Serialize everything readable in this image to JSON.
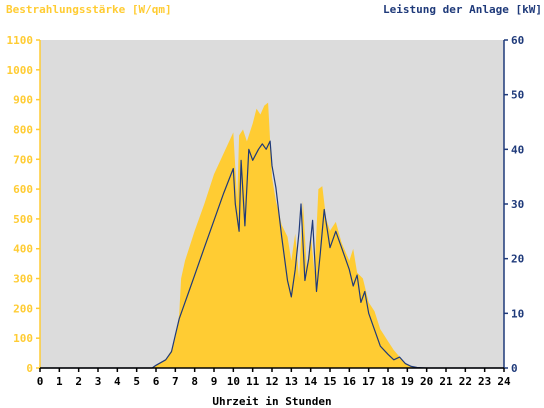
{
  "chart_data": {
    "type": "area",
    "title_left": "Bestrahlungsstärke [W/qm]",
    "title_right": "Leistung der Anlage [kW]",
    "xlabel": "Uhrzeit in Stunden",
    "x_ticks": [
      "0",
      "1",
      "2",
      "3",
      "4",
      "5",
      "6",
      "7",
      "8",
      "9",
      "10",
      "11",
      "12",
      "13",
      "14",
      "15",
      "16",
      "17",
      "18",
      "19",
      "20",
      "21",
      "22",
      "23",
      "24"
    ],
    "xlim": [
      0,
      24
    ],
    "y_left_ticks": [
      "0",
      "100",
      "200",
      "300",
      "400",
      "500",
      "600",
      "700",
      "800",
      "900",
      "1000",
      "1100"
    ],
    "ylim_left": [
      0,
      1100
    ],
    "y_right_ticks": [
      "0",
      "10",
      "20",
      "30",
      "40",
      "50",
      "60"
    ],
    "ylim_right": [
      0,
      60
    ],
    "grid": false,
    "colors": {
      "plot_bg": "#dcdcdc",
      "irradiance": "#ffcc33",
      "power": "#1f3a7a",
      "left_axis": "#ffcc33",
      "right_axis": "#1f3a7a",
      "x_axis": "#000000"
    },
    "series": [
      {
        "axis": "left",
        "style": "area",
        "x": [
          0,
          5.8,
          6.0,
          6.5,
          6.8,
          7.0,
          7.2,
          7.3,
          7.5,
          7.7,
          8.0,
          8.5,
          9.0,
          9.5,
          10.0,
          10.2,
          10.3,
          10.5,
          10.7,
          11.0,
          11.2,
          11.4,
          11.6,
          11.8,
          12.0,
          12.2,
          12.5,
          12.8,
          13.0,
          13.2,
          13.4,
          13.6,
          13.8,
          14.0,
          14.2,
          14.4,
          14.6,
          14.8,
          15.0,
          15.3,
          15.6,
          16.0,
          16.2,
          16.4,
          16.7,
          17.0,
          17.3,
          17.6,
          18.0,
          18.3,
          18.7,
          19.0,
          19.5,
          20.0,
          24
        ],
        "y": [
          0,
          0,
          10,
          30,
          60,
          100,
          180,
          300,
          360,
          400,
          460,
          550,
          650,
          720,
          790,
          560,
          780,
          800,
          760,
          820,
          870,
          850,
          880,
          890,
          640,
          560,
          480,
          440,
          360,
          450,
          300,
          560,
          330,
          450,
          320,
          600,
          610,
          500,
          460,
          490,
          420,
          360,
          400,
          320,
          300,
          220,
          190,
          130,
          90,
          60,
          30,
          10,
          2,
          0,
          0
        ]
      },
      {
        "axis": "right",
        "style": "line",
        "x": [
          0,
          5.8,
          6.0,
          6.5,
          6.8,
          7.0,
          7.2,
          7.5,
          7.7,
          8.0,
          8.5,
          9.0,
          9.5,
          10.0,
          10.1,
          10.3,
          10.4,
          10.6,
          10.8,
          11.0,
          11.3,
          11.5,
          11.7,
          11.9,
          12.0,
          12.2,
          12.5,
          12.8,
          13.0,
          13.2,
          13.4,
          13.5,
          13.7,
          13.9,
          14.1,
          14.3,
          14.5,
          14.7,
          15.0,
          15.3,
          15.6,
          16.0,
          16.2,
          16.4,
          16.6,
          16.8,
          17.0,
          17.3,
          17.6,
          18.0,
          18.3,
          18.6,
          18.9,
          19.2,
          19.5,
          20.0,
          24
        ],
        "y": [
          0,
          0,
          0.5,
          1.5,
          3,
          6,
          9,
          12,
          14,
          17,
          22,
          27,
          32,
          36.5,
          30,
          25,
          38,
          26,
          40,
          38,
          40,
          41,
          40,
          41.5,
          37,
          33,
          24,
          16,
          13,
          18,
          25,
          30,
          16,
          20,
          27,
          14,
          21,
          29,
          22,
          25,
          22,
          18,
          15,
          17,
          12,
          14,
          10,
          7,
          4,
          2.5,
          1.5,
          2,
          0.8,
          0.3,
          0.1,
          0,
          0
        ]
      }
    ]
  }
}
